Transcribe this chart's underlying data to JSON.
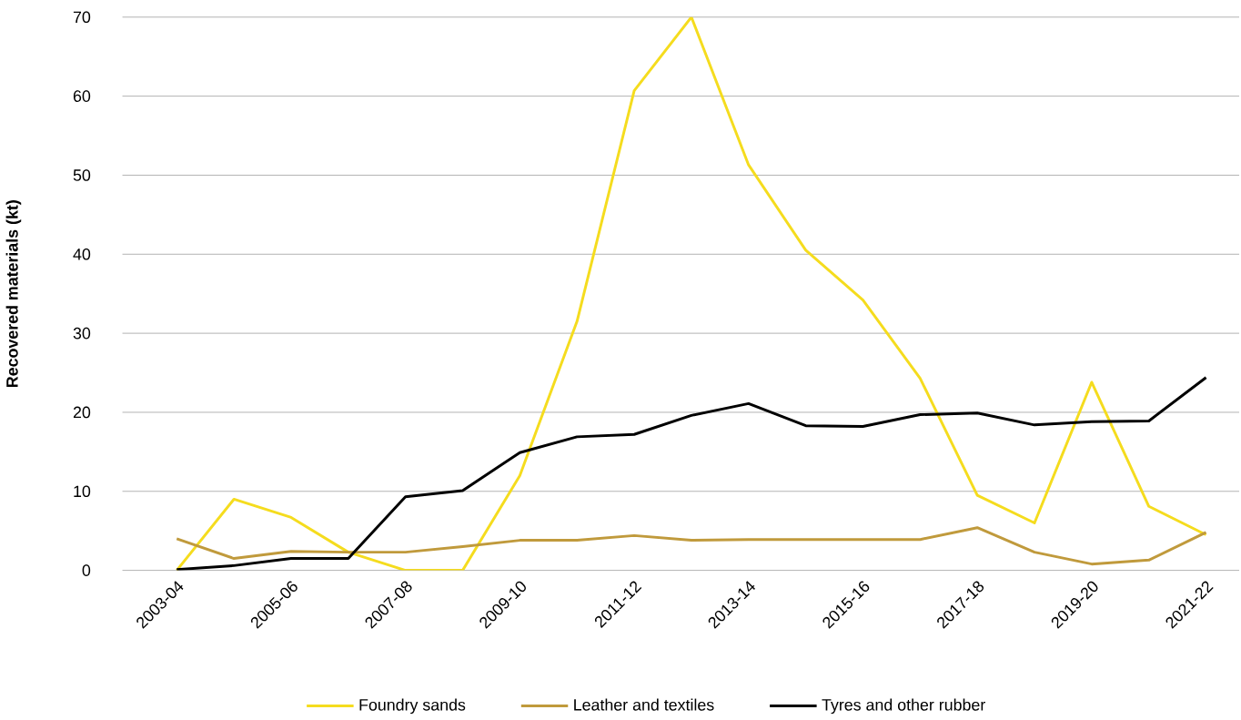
{
  "chart_data": {
    "type": "line",
    "ylabel": "Recovered materials (kt)",
    "categories": [
      "2003-04",
      null,
      "2005-06",
      null,
      "2007-08",
      null,
      "2009-10",
      null,
      "2011-12",
      null,
      "2013-14",
      null,
      "2015-16",
      null,
      "2017-18",
      null,
      "2019-20",
      null,
      "2021-22"
    ],
    "series": [
      {
        "name": "Foundry sands",
        "color": "#f5dc1e",
        "values": [
          0,
          9.0,
          6.7,
          2.3,
          0,
          0,
          12.0,
          31.5,
          60.7,
          70.0,
          51.3,
          40.5,
          34.2,
          24.3,
          9.5,
          6.0,
          23.8,
          8.1,
          4.5
        ]
      },
      {
        "name": "Leather and textiles",
        "color": "#c09a3c",
        "values": [
          4.0,
          1.5,
          2.4,
          2.3,
          2.3,
          3.0,
          3.8,
          3.8,
          4.4,
          3.8,
          3.9,
          3.9,
          3.9,
          3.9,
          5.4,
          2.3,
          0.8,
          1.3,
          4.8
        ]
      },
      {
        "name": "Tyres and other rubber",
        "color": "#000000",
        "values": [
          0.1,
          0.6,
          1.5,
          1.5,
          9.3,
          10.1,
          14.9,
          16.9,
          17.2,
          19.6,
          21.1,
          18.3,
          18.2,
          19.7,
          19.9,
          18.4,
          18.8,
          18.9,
          24.4
        ]
      }
    ],
    "ylim": [
      0,
      70
    ],
    "yticks": [
      0,
      10,
      20,
      30,
      40,
      50,
      60,
      70
    ],
    "grid": "y",
    "legend": "bottom",
    "marker": "none",
    "line_style": "solid"
  }
}
